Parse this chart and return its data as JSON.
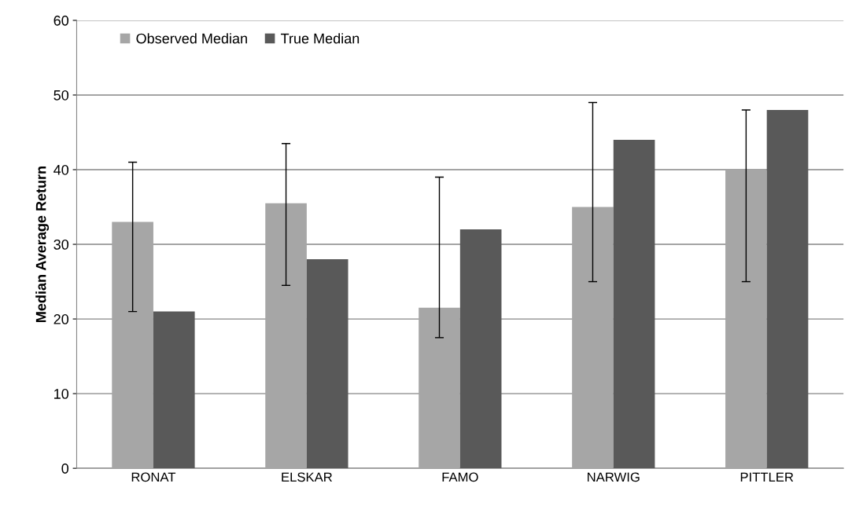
{
  "chart_data": {
    "type": "bar",
    "ylabel": "Median Average Return",
    "categories": [
      "RONAT",
      "ELSKAR",
      "FAMO",
      "NARWIG",
      "PITTLER"
    ],
    "series": [
      {
        "name": "Observed Median",
        "color": "#a6a6a6",
        "values": [
          33,
          35.5,
          21.5,
          35,
          40
        ],
        "errors": [
          [
            21,
            41
          ],
          [
            24.5,
            43.5
          ],
          [
            17.5,
            39
          ],
          [
            25,
            49
          ],
          [
            25,
            48
          ]
        ]
      },
      {
        "name": "True Median",
        "color": "#595959",
        "values": [
          21,
          28,
          32,
          44,
          48
        ]
      }
    ],
    "ylim": [
      0,
      60
    ],
    "yticks": [
      0,
      10,
      20,
      30,
      40,
      50,
      60
    ],
    "grid": "y",
    "legend": "top left"
  }
}
